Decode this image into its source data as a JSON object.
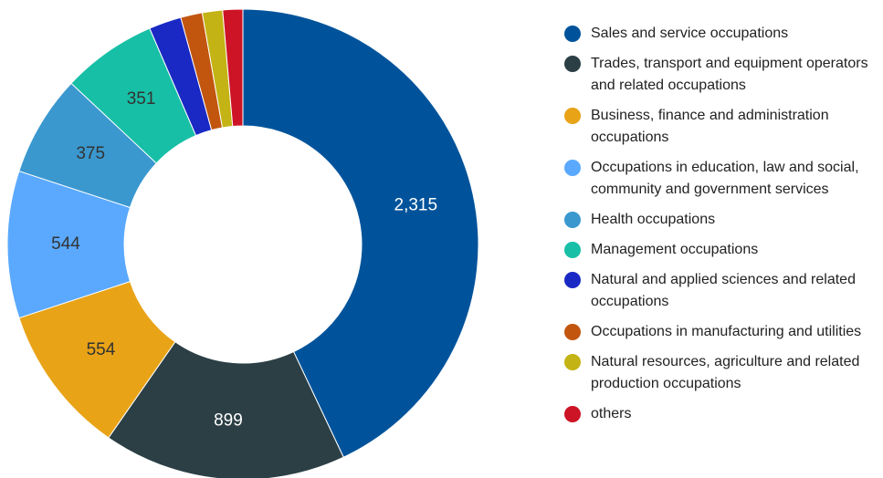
{
  "chart_data": {
    "type": "donut",
    "categories": [
      "Sales and service occupations",
      "Trades, transport and equipment operators and related occupations",
      "Business, finance and administration occupations",
      "Occupations in education, law and social, community and government services",
      "Health occupations",
      "Management occupations",
      "Natural and applied sciences and related occupations",
      "Occupations in manufacturing and utilities",
      "Natural resources, agriculture and related production occupations",
      "others"
    ],
    "values": [
      2315,
      899,
      554,
      544,
      375,
      351,
      120,
      80,
      75,
      74
    ],
    "value_labels": [
      "2,315",
      "899",
      "554",
      "544",
      "375",
      "351",
      null,
      null,
      null,
      null
    ],
    "colors": [
      "#00539b",
      "#2b3f45",
      "#e8a317",
      "#5aa9ff",
      "#3a98cf",
      "#17bfa6",
      "#1a29c4",
      "#c2560f",
      "#c3b314",
      "#cc1426"
    ],
    "legend": "right"
  }
}
